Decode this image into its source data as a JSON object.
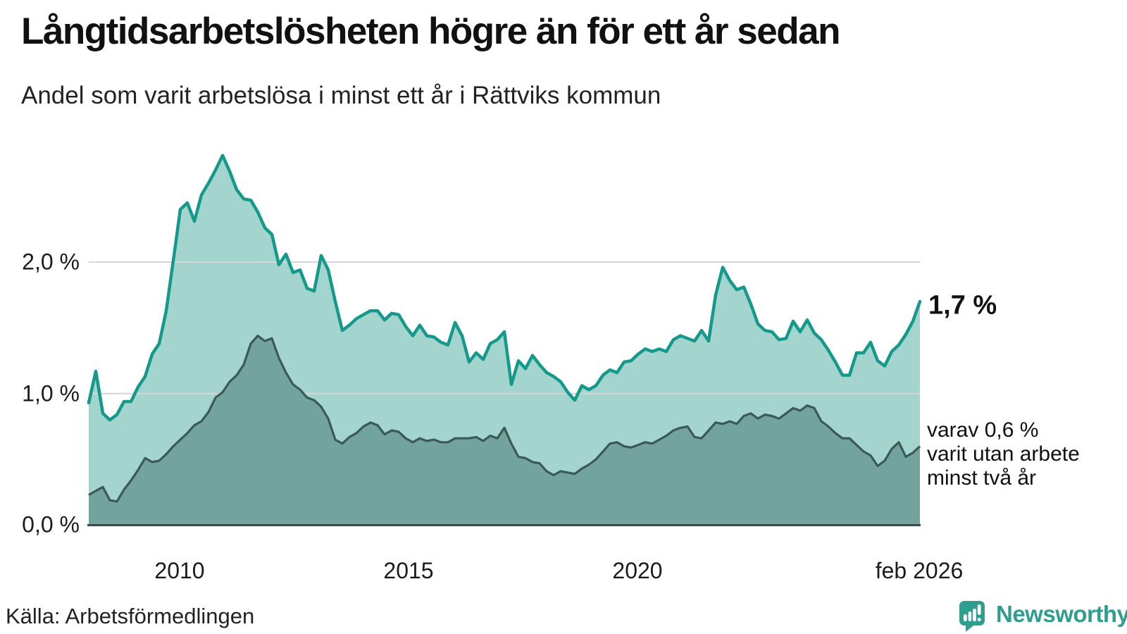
{
  "header": {
    "title": "Långtidsarbetslösheten högre än för ett år sedan",
    "subtitle": "Andel som varit arbetslösa i minst ett år i Rättviks kommun"
  },
  "source": "Källa: Arbetsförmedlingen",
  "branding": {
    "name": "Newsworthy",
    "icon": "newsworthy-speech-bubble-bar-chart-icon",
    "color": "#2f9e8f"
  },
  "annotations": {
    "latest_total": "1,7 %",
    "two_year_lines": [
      "varav 0,6 %",
      "varit utan arbete",
      "minst två år"
    ]
  },
  "colors": {
    "upper_stroke": "#14998a",
    "upper_fill": "#a3d4ce",
    "lower_stroke": "#3b5956",
    "lower_fill": "#72a39d",
    "baseline": "#374d4c",
    "gridline": "#d6d6d6",
    "background": "#ffffff"
  },
  "chart_data": {
    "type": "area",
    "title": "Långtidsarbetslösheten högre än för ett år sedan",
    "subtitle": "Andel som varit arbetslösa i minst ett år i Rättviks kommun",
    "unit": "%",
    "x_tick_labels": [
      "2010",
      "2015",
      "2020",
      "feb 2026"
    ],
    "y_tick_labels": [
      "2,0 %",
      "1,0 %",
      "0,0 %"
    ],
    "y_grid_values": [
      2.0,
      1.0
    ],
    "ylim": [
      0,
      2.95
    ],
    "legend_position": "right-annotations",
    "grid": "horizontal-only",
    "x_note": "values evenly spaced in time, monthly data from 2008 to feb 2026 (resampled ~2-month steps)",
    "latest": {
      "total_pct": 1.7,
      "two_year_pct": 0.6
    },
    "series": [
      {
        "name": "Andel arbetslösa minst ett år",
        "stroke": "#14998a",
        "fill": "#a3d4ce",
        "stroke_width": 4.5,
        "values": [
          0.93,
          1.17,
          0.85,
          0.8,
          0.84,
          0.94,
          0.94,
          1.05,
          1.13,
          1.3,
          1.38,
          1.63,
          2.01,
          2.4,
          2.45,
          2.31,
          2.51,
          2.6,
          2.7,
          2.81,
          2.69,
          2.55,
          2.48,
          2.47,
          2.38,
          2.26,
          2.21,
          1.98,
          2.06,
          1.92,
          1.94,
          1.8,
          1.78,
          2.05,
          1.94,
          1.7,
          1.48,
          1.52,
          1.57,
          1.6,
          1.63,
          1.63,
          1.56,
          1.61,
          1.6,
          1.51,
          1.44,
          1.52,
          1.44,
          1.43,
          1.39,
          1.37,
          1.54,
          1.44,
          1.24,
          1.31,
          1.26,
          1.38,
          1.41,
          1.47,
          1.07,
          1.25,
          1.19,
          1.29,
          1.22,
          1.16,
          1.13,
          1.09,
          1.01,
          0.95,
          1.06,
          1.03,
          1.06,
          1.14,
          1.18,
          1.16,
          1.24,
          1.25,
          1.3,
          1.34,
          1.32,
          1.34,
          1.32,
          1.41,
          1.44,
          1.42,
          1.4,
          1.48,
          1.4,
          1.75,
          1.96,
          1.86,
          1.79,
          1.81,
          1.68,
          1.53,
          1.48,
          1.47,
          1.41,
          1.42,
          1.55,
          1.47,
          1.56,
          1.46,
          1.41,
          1.33,
          1.24,
          1.14,
          1.14,
          1.31,
          1.31,
          1.39,
          1.25,
          1.21,
          1.32,
          1.37,
          1.45,
          1.55,
          1.7
        ]
      },
      {
        "name": "varav utan arbete minst två år",
        "stroke": "#3b5956",
        "fill": "#72a39d",
        "stroke_width": 3.2,
        "values": [
          0.23,
          0.26,
          0.29,
          0.19,
          0.18,
          0.27,
          0.34,
          0.42,
          0.51,
          0.48,
          0.49,
          0.54,
          0.6,
          0.65,
          0.7,
          0.76,
          0.79,
          0.86,
          0.97,
          1.01,
          1.09,
          1.14,
          1.22,
          1.38,
          1.44,
          1.4,
          1.42,
          1.27,
          1.16,
          1.07,
          1.03,
          0.97,
          0.95,
          0.9,
          0.81,
          0.65,
          0.62,
          0.67,
          0.7,
          0.75,
          0.78,
          0.76,
          0.69,
          0.72,
          0.71,
          0.66,
          0.63,
          0.66,
          0.64,
          0.65,
          0.63,
          0.63,
          0.66,
          0.66,
          0.66,
          0.67,
          0.64,
          0.68,
          0.66,
          0.74,
          0.62,
          0.52,
          0.51,
          0.48,
          0.47,
          0.41,
          0.38,
          0.41,
          0.4,
          0.39,
          0.43,
          0.46,
          0.5,
          0.56,
          0.62,
          0.63,
          0.6,
          0.59,
          0.61,
          0.63,
          0.62,
          0.65,
          0.68,
          0.72,
          0.74,
          0.75,
          0.67,
          0.66,
          0.72,
          0.78,
          0.77,
          0.79,
          0.77,
          0.83,
          0.85,
          0.81,
          0.84,
          0.83,
          0.81,
          0.85,
          0.89,
          0.87,
          0.91,
          0.89,
          0.79,
          0.75,
          0.7,
          0.66,
          0.66,
          0.61,
          0.56,
          0.53,
          0.45,
          0.49,
          0.58,
          0.63,
          0.52,
          0.55,
          0.6
        ]
      }
    ]
  }
}
